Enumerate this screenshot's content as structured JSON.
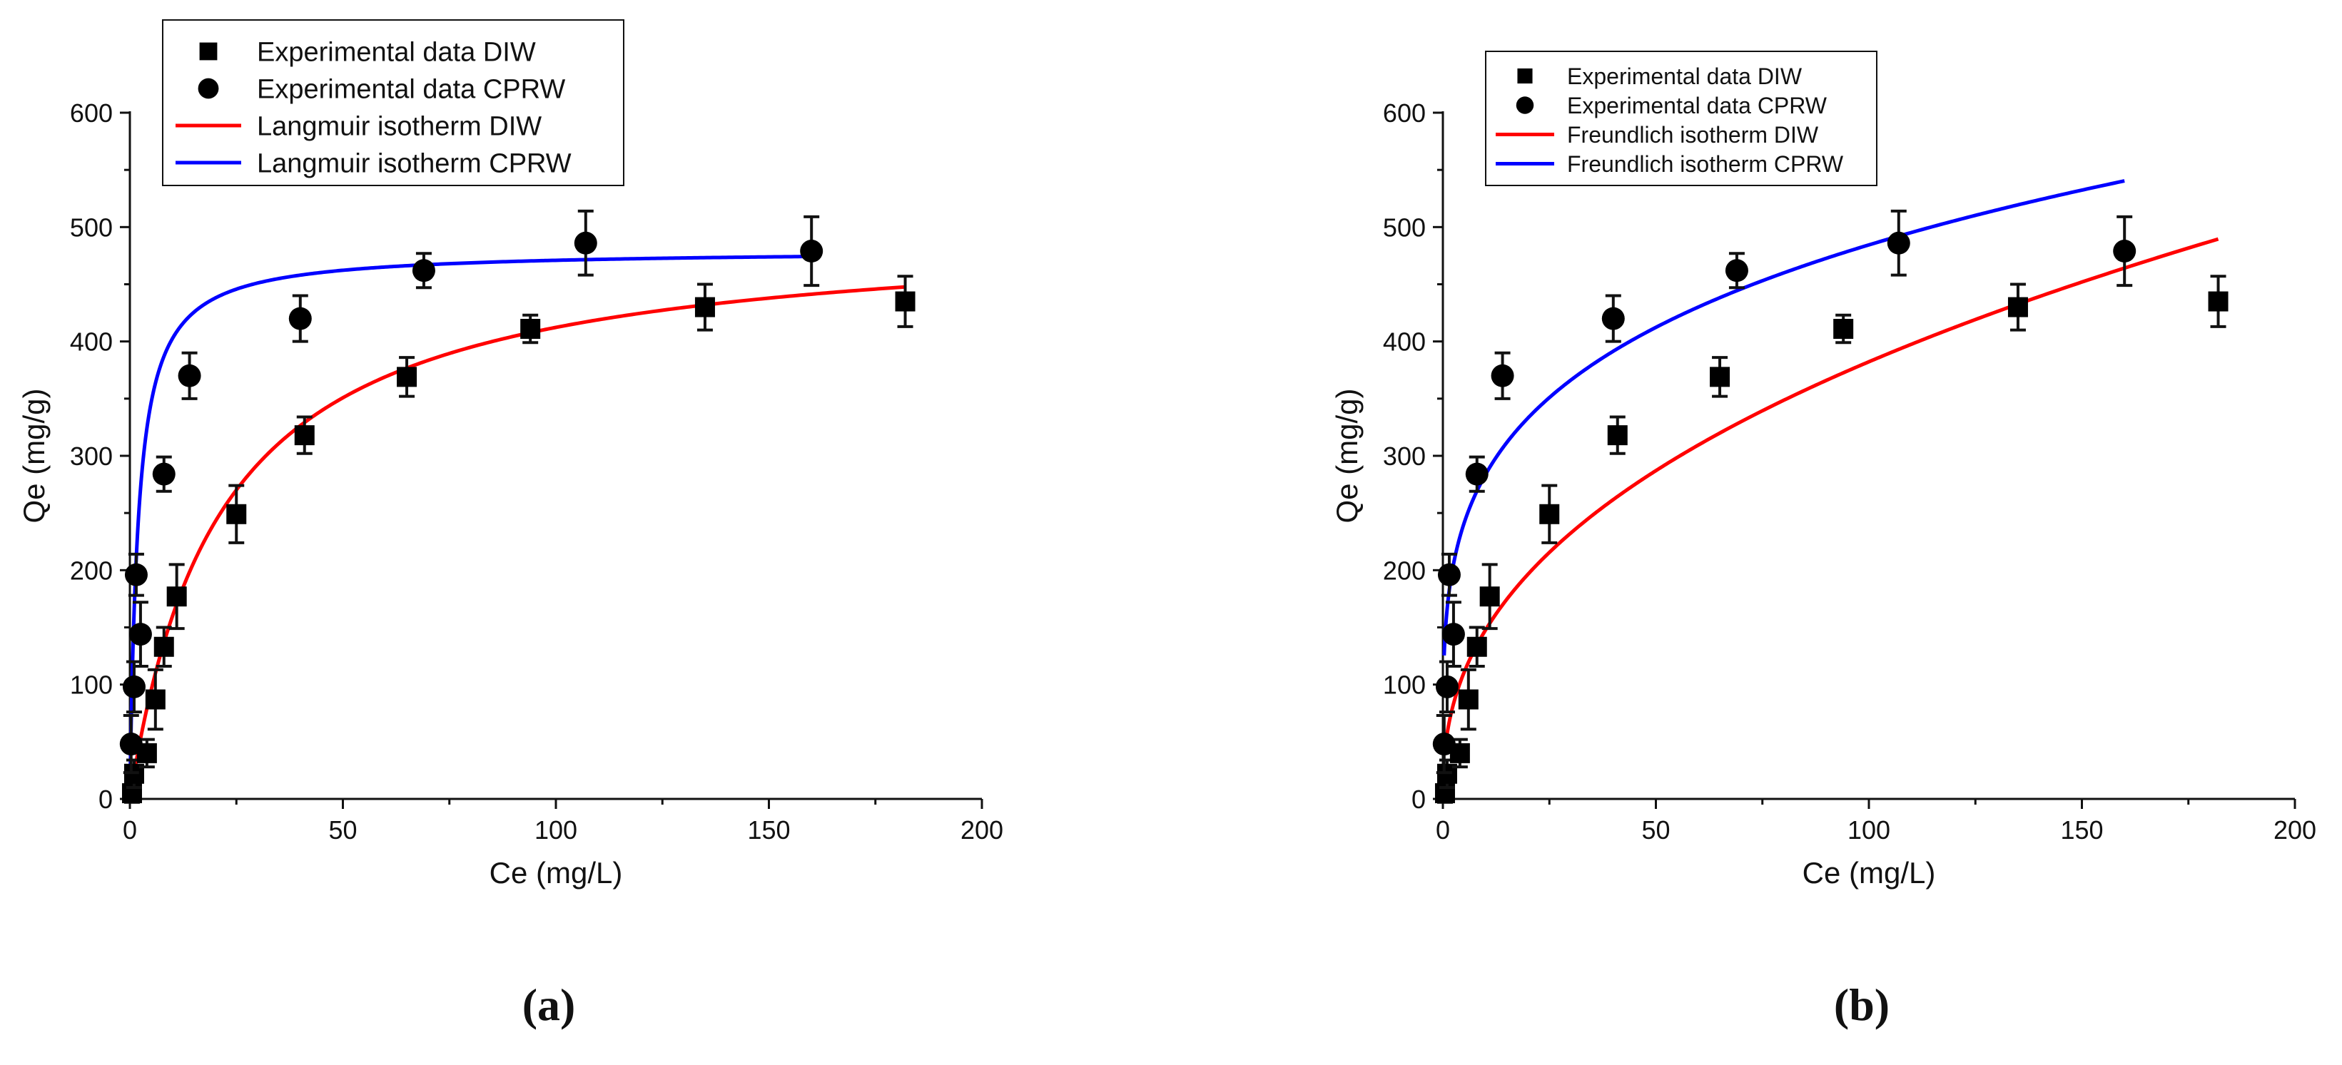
{
  "chart_data": [
    {
      "type": "scatter",
      "panel_label": "(a)",
      "xlabel": "Ce (mg/L)",
      "ylabel": "Qe (mg/g)",
      "xlim": [
        0,
        200
      ],
      "ylim": [
        0,
        600
      ],
      "x_ticks": [
        0,
        50,
        100,
        150,
        200
      ],
      "y_ticks": [
        0,
        100,
        200,
        300,
        400,
        500,
        600
      ],
      "x_tick_labels": [
        "0",
        "50",
        "100",
        "150",
        "200"
      ],
      "y_tick_labels": [
        "0",
        "100",
        "200",
        "300",
        "400",
        "500",
        "600"
      ],
      "legend_position": "top-left",
      "scatter_series": [
        {
          "name": "Experimental data DIW",
          "marker": "square",
          "color": "#000000",
          "points": [
            {
              "x": 0.5,
              "y": 5,
              "err": 8
            },
            {
              "x": 1,
              "y": 22,
              "err": 12
            },
            {
              "x": 4,
              "y": 40,
              "err": 12
            },
            {
              "x": 6,
              "y": 87,
              "err": 26
            },
            {
              "x": 8,
              "y": 133,
              "err": 17
            },
            {
              "x": 11,
              "y": 177,
              "err": 28
            },
            {
              "x": 25,
              "y": 249,
              "err": 25
            },
            {
              "x": 41,
              "y": 318,
              "err": 16
            },
            {
              "x": 65,
              "y": 369,
              "err": 17
            },
            {
              "x": 94,
              "y": 411,
              "err": 12
            },
            {
              "x": 135,
              "y": 430,
              "err": 20
            },
            {
              "x": 182,
              "y": 435,
              "err": 22
            }
          ]
        },
        {
          "name": "Experimental data CPRW",
          "marker": "circle",
          "color": "#000000",
          "points": [
            {
              "x": 0.3,
              "y": 48,
              "err": 25
            },
            {
              "x": 1,
              "y": 98,
              "err": 22
            },
            {
              "x": 1.5,
              "y": 196,
              "err": 18
            },
            {
              "x": 2.5,
              "y": 144,
              "err": 28
            },
            {
              "x": 8,
              "y": 284,
              "err": 15
            },
            {
              "x": 14,
              "y": 370,
              "err": 20
            },
            {
              "x": 40,
              "y": 420,
              "err": 20
            },
            {
              "x": 69,
              "y": 462,
              "err": 15
            },
            {
              "x": 107,
              "y": 486,
              "err": 28
            },
            {
              "x": 160,
              "y": 479,
              "err": 30
            }
          ]
        }
      ],
      "line_series": [
        {
          "name": "Langmuir isotherm DIW",
          "color": "#ff0000",
          "model": "langmuir",
          "qmax": 500,
          "K": 0.047,
          "x_range": [
            0,
            182
          ]
        },
        {
          "name": "Langmuir isotherm CPRW",
          "color": "#0000ff",
          "model": "langmuir",
          "qmax": 480,
          "K": 0.52,
          "x_range": [
            0,
            160
          ]
        }
      ]
    },
    {
      "type": "scatter",
      "panel_label": "(b)",
      "xlabel": "Ce (mg/L)",
      "ylabel": "Qe (mg/g)",
      "xlim": [
        0,
        200
      ],
      "ylim": [
        0,
        600
      ],
      "x_ticks": [
        0,
        50,
        100,
        150,
        200
      ],
      "y_ticks": [
        0,
        100,
        200,
        300,
        400,
        500,
        600
      ],
      "x_tick_labels": [
        "0",
        "50",
        "100",
        "150",
        "200"
      ],
      "y_tick_labels": [
        "0",
        "100",
        "200",
        "300",
        "400",
        "500",
        "600"
      ],
      "legend_position": "top-left",
      "scatter_series": [
        {
          "name": "Experimental data DIW",
          "marker": "square",
          "color": "#000000",
          "points": [
            {
              "x": 0.5,
              "y": 5,
              "err": 8
            },
            {
              "x": 1,
              "y": 22,
              "err": 12
            },
            {
              "x": 4,
              "y": 40,
              "err": 12
            },
            {
              "x": 6,
              "y": 87,
              "err": 26
            },
            {
              "x": 8,
              "y": 133,
              "err": 17
            },
            {
              "x": 11,
              "y": 177,
              "err": 28
            },
            {
              "x": 25,
              "y": 249,
              "err": 25
            },
            {
              "x": 41,
              "y": 318,
              "err": 16
            },
            {
              "x": 65,
              "y": 369,
              "err": 17
            },
            {
              "x": 94,
              "y": 411,
              "err": 12
            },
            {
              "x": 135,
              "y": 430,
              "err": 20
            },
            {
              "x": 182,
              "y": 435,
              "err": 22
            }
          ]
        },
        {
          "name": "Experimental data CPRW",
          "marker": "circle",
          "color": "#000000",
          "points": [
            {
              "x": 0.3,
              "y": 48,
              "err": 25
            },
            {
              "x": 1,
              "y": 98,
              "err": 22
            },
            {
              "x": 1.5,
              "y": 196,
              "err": 18
            },
            {
              "x": 2.5,
              "y": 144,
              "err": 28
            },
            {
              "x": 8,
              "y": 284,
              "err": 15
            },
            {
              "x": 14,
              "y": 370,
              "err": 20
            },
            {
              "x": 40,
              "y": 420,
              "err": 20
            },
            {
              "x": 69,
              "y": 462,
              "err": 15
            },
            {
              "x": 107,
              "y": 486,
              "err": 28
            },
            {
              "x": 160,
              "y": 479,
              "err": 30
            }
          ]
        }
      ],
      "line_series": [
        {
          "name": "Freundlich isotherm DIW",
          "color": "#ff0000",
          "model": "freundlich",
          "Kf": 57,
          "n": 2.42,
          "x_range": [
            0.5,
            182
          ]
        },
        {
          "name": "Freundlich isotherm CPRW",
          "color": "#0000ff",
          "model": "freundlich",
          "Kf": 166,
          "n": 4.3,
          "x_range": [
            0.3,
            160
          ]
        }
      ]
    }
  ]
}
